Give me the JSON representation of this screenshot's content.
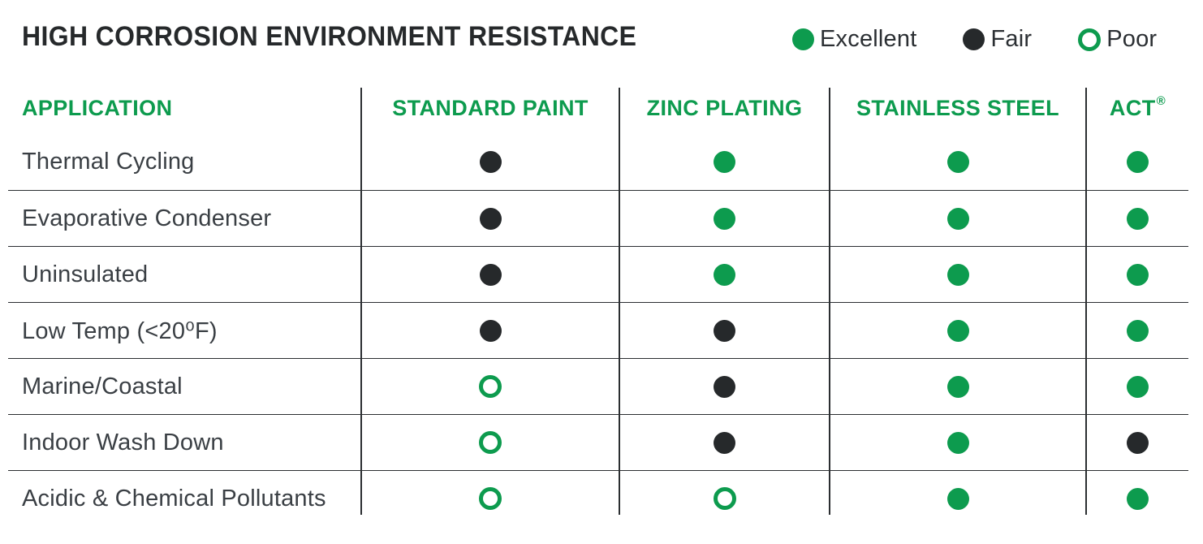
{
  "title": "HIGH CORROSION ENVIRONMENT RESISTANCE",
  "colors": {
    "green": "#0D9B4E",
    "dark": "#26292B",
    "label_text": "#3A3F44",
    "line": "#2B2E31"
  },
  "legend": {
    "items": [
      {
        "label": "Excellent",
        "marker": "excellent"
      },
      {
        "label": "Fair",
        "marker": "fair"
      },
      {
        "label": "Poor",
        "marker": "poor"
      }
    ]
  },
  "chart_data": {
    "type": "table",
    "title": "HIGH CORROSION ENVIRONMENT RESISTANCE",
    "legend": [
      {
        "label": "Excellent",
        "marker": "filled-green-circle"
      },
      {
        "label": "Fair",
        "marker": "filled-black-circle"
      },
      {
        "label": "Poor",
        "marker": "open-green-circle"
      }
    ],
    "columns": [
      "APPLICATION",
      "STANDARD PAINT",
      "ZINC PLATING",
      "STAINLESS STEEL",
      "ACT®"
    ],
    "rows": [
      {
        "application": "Thermal Cycling",
        "values": [
          "Fair",
          "Excellent",
          "Excellent",
          "Excellent"
        ]
      },
      {
        "application": "Evaporative Condenser",
        "values": [
          "Fair",
          "Excellent",
          "Excellent",
          "Excellent"
        ]
      },
      {
        "application": "Uninsulated",
        "values": [
          "Fair",
          "Excellent",
          "Excellent",
          "Excellent"
        ]
      },
      {
        "application": "Low Temp (<20⁰F)",
        "values": [
          "Fair",
          "Fair",
          "Excellent",
          "Excellent"
        ]
      },
      {
        "application": "Marine/Coastal",
        "values": [
          "Poor",
          "Fair",
          "Excellent",
          "Excellent"
        ]
      },
      {
        "application": "Indoor Wash Down",
        "values": [
          "Poor",
          "Fair",
          "Excellent",
          "Fair"
        ]
      },
      {
        "application": "Acidic & Chemical Pollutants",
        "values": [
          "Poor",
          "Poor",
          "Excellent",
          "Excellent"
        ]
      }
    ]
  }
}
